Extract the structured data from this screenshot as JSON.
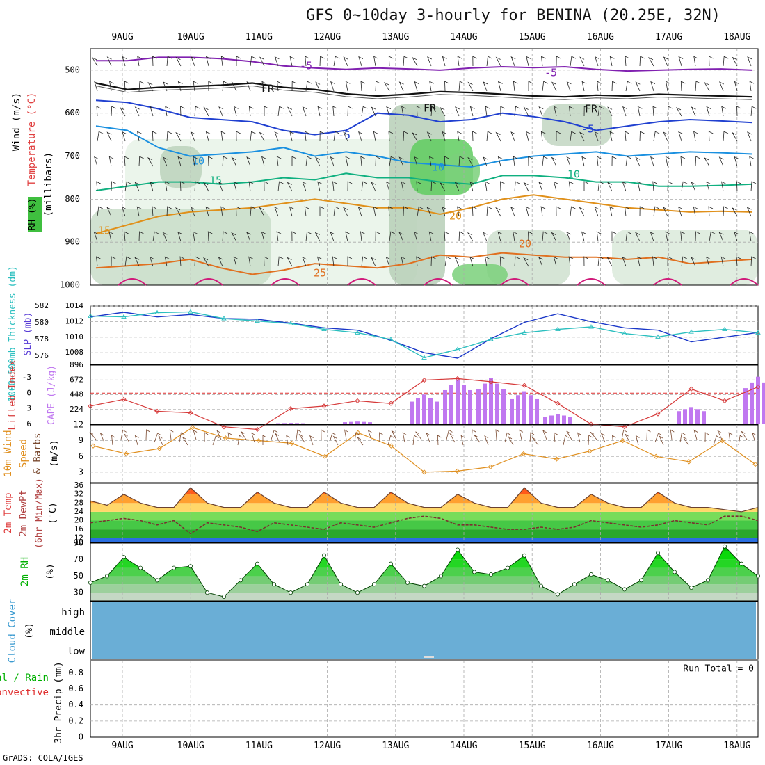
{
  "title": "GFS 0~10day 3-hourly for BENINA (20.25E, 32N)",
  "credit": "GrADS: COLA/IGES",
  "dates": [
    "9AUG",
    "10AUG",
    "11AUG",
    "12AUG",
    "13AUG",
    "14AUG",
    "15AUG",
    "16AUG",
    "17AUG",
    "18AUG"
  ],
  "colors": {
    "rh_fill": "#3fbf3f",
    "slp": "#1a37c8",
    "thickness": "#2bbfbf",
    "cape": "#c078f0",
    "lifted_index": "#d63a3a",
    "wind": "#e09020",
    "temp_hot": "#e04010",
    "rh2m": "#00d000",
    "cloud": "#6aaed6",
    "barb": "#7a4a30"
  },
  "chart_data": [
    {
      "type": "heatmap",
      "panel": "upper_air",
      "ylabels": [
        "Wind (m/s)",
        "Temperature (°C)",
        "RH (%)",
        "(millibars)"
      ],
      "yticks": [
        "500",
        "600",
        "700",
        "800",
        "900",
        "1000"
      ],
      "ylim": [
        1000,
        450
      ],
      "contour_labels": [
        "-5",
        "-5",
        "FR",
        "FR",
        "FR",
        "-5",
        "-5",
        "10",
        "10",
        "10",
        "15",
        "15",
        "20",
        "20",
        "25",
        "25"
      ],
      "isotherms": [
        {
          "name": "-5",
          "pressure": [
            478,
            478,
            470,
            470,
            473,
            480,
            490,
            495,
            498,
            495,
            497,
            500,
            495,
            492,
            494,
            492,
            498,
            502,
            500,
            498,
            497,
            500
          ]
        },
        {
          "name": "FR",
          "pressure": [
            530,
            545,
            540,
            538,
            535,
            530,
            540,
            545,
            555,
            560,
            556,
            550,
            552,
            556,
            560,
            562,
            558,
            560,
            556,
            558,
            560,
            562
          ]
        },
        {
          "name": "-5",
          "pressure": [
            570,
            575,
            590,
            610,
            615,
            620,
            640,
            650,
            640,
            600,
            605,
            620,
            615,
            600,
            608,
            620,
            640,
            630,
            620,
            615,
            618,
            622
          ]
        },
        {
          "name": "10",
          "pressure": [
            630,
            640,
            680,
            700,
            695,
            690,
            680,
            700,
            690,
            700,
            715,
            720,
            725,
            710,
            700,
            695,
            690,
            700,
            695,
            690,
            692,
            695
          ]
        },
        {
          "name": "15",
          "pressure": [
            780,
            770,
            760,
            760,
            765,
            760,
            750,
            755,
            740,
            750,
            750,
            760,
            765,
            745,
            745,
            750,
            760,
            760,
            770,
            770,
            768,
            765
          ]
        },
        {
          "name": "20",
          "pressure": [
            880,
            860,
            840,
            830,
            825,
            820,
            810,
            800,
            810,
            820,
            820,
            835,
            820,
            800,
            790,
            800,
            810,
            820,
            825,
            830,
            828,
            830
          ]
        },
        {
          "name": "25",
          "pressure": [
            960,
            955,
            950,
            940,
            960,
            975,
            965,
            950,
            955,
            960,
            950,
            930,
            935,
            925,
            930,
            935,
            935,
            940,
            935,
            950,
            945,
            940
          ]
        }
      ]
    },
    {
      "type": "line",
      "panel": "slp_thickness",
      "ylabels": [
        "1000~500mb Thickness (dm)",
        "SLP (mb)"
      ],
      "left_ticks": [
        "582",
        "580",
        "578",
        "576"
      ],
      "right_ticks": [
        "1014",
        "1012",
        "1010",
        "1008"
      ],
      "ylim_slp": [
        1006.5,
        1014
      ],
      "ylim_thickness": [
        575,
        582
      ],
      "x": [
        0,
        0.5,
        1,
        1.5,
        2,
        2.5,
        3,
        3.5,
        4,
        4.5,
        5,
        5.5,
        6,
        6.5,
        7,
        7.5,
        8,
        8.5,
        9,
        9.5,
        10
      ],
      "series": [
        {
          "name": "SLP (mb)",
          "axis": "right",
          "values": [
            1012.6,
            1013.2,
            1012.6,
            1012.9,
            1012.4,
            1012.3,
            1011.8,
            1011.2,
            1010.9,
            1009.6,
            1008.0,
            1007.3,
            1009.8,
            1011.9,
            1013.0,
            1012.0,
            1011.2,
            1010.9,
            1009.4,
            1010.0,
            1010.6
          ]
        },
        {
          "name": "1000~500mb Thickness (dm)",
          "axis": "left",
          "values": [
            580.8,
            580.7,
            581.2,
            581.3,
            580.5,
            580.2,
            579.9,
            579.2,
            578.8,
            578.0,
            575.8,
            576.8,
            578.0,
            578.8,
            579.2,
            579.5,
            578.7,
            578.3,
            578.9,
            579.2,
            578.8
          ]
        }
      ]
    },
    {
      "type": "bar",
      "panel": "cape_li",
      "ylabels": [
        "Lifted Index",
        "CAPE (J/kg)"
      ],
      "left_ticks": [
        "-3",
        "0",
        "3",
        "6"
      ],
      "right_ticks": [
        "896",
        "672",
        "448",
        "224"
      ],
      "ylim_li": [
        6,
        -5.4
      ],
      "ylim_cape": [
        0,
        896
      ],
      "x": [
        0,
        0.5,
        1,
        1.5,
        2,
        2.5,
        3,
        3.5,
        4,
        4.5,
        5,
        5.5,
        6,
        6.5,
        7,
        7.5,
        8,
        8.5,
        9,
        9.5,
        10
      ],
      "series": [
        {
          "name": "CAPE (J/kg)",
          "values": [
            0,
            0,
            0,
            0,
            0,
            0,
            20,
            10,
            40,
            10,
            450,
            680,
            700,
            500,
            150,
            0,
            0,
            0,
            260,
            0,
            720
          ]
        },
        {
          "name": "Lifted Index",
          "values": [
            2.5,
            1.2,
            3.5,
            3.8,
            6.5,
            7,
            3,
            2.5,
            1.5,
            2.0,
            -2.5,
            -2.8,
            -2.2,
            -1.5,
            2,
            6,
            6.5,
            4,
            -0.8,
            1.5,
            -1.2
          ]
        }
      ]
    },
    {
      "type": "line",
      "panel": "wind10m",
      "ylabels": [
        "10m Wind Speed & Barbs (m/s)"
      ],
      "yticks": [
        "12",
        "9",
        "6",
        "3"
      ],
      "ylim": [
        1,
        12
      ],
      "x": [
        0,
        0.5,
        1,
        1.5,
        2,
        2.5,
        3,
        3.5,
        4,
        4.5,
        5,
        5.5,
        6,
        6.5,
        7,
        7.5,
        8,
        8.5,
        9,
        9.5,
        10
      ],
      "series": [
        {
          "name": "10m Wind Speed",
          "values": [
            8.0,
            6.5,
            7.5,
            11.5,
            9.5,
            9.0,
            8.5,
            6.0,
            10.5,
            8.0,
            3.0,
            3.2,
            4.0,
            6.5,
            5.5,
            7.0,
            9.0,
            6.0,
            5.0,
            9.0,
            4.5
          ]
        }
      ]
    },
    {
      "type": "area",
      "panel": "temp2m",
      "ylabels": [
        "2m Temp",
        "2m DewPt",
        "(6hr Min/Max) (°C)"
      ],
      "yticks": [
        "36",
        "32",
        "28",
        "24",
        "20",
        "16",
        "12",
        "10"
      ],
      "ylim": [
        10,
        37
      ],
      "x": [
        0,
        0.25,
        0.5,
        0.75,
        1,
        1.25,
        1.5,
        1.75,
        2,
        2.25,
        2.5,
        2.75,
        3,
        3.25,
        3.5,
        3.75,
        4,
        4.25,
        4.5,
        4.75,
        5,
        5.25,
        5.5,
        5.75,
        6,
        6.25,
        6.5,
        6.75,
        7,
        7.25,
        7.5,
        7.75,
        8,
        8.25,
        8.5,
        8.75,
        9,
        9.25,
        9.5,
        9.75,
        10
      ],
      "series": [
        {
          "name": "2m Temp",
          "values": [
            29,
            27,
            32,
            28,
            26,
            26,
            35,
            28,
            26,
            26,
            33,
            28,
            26,
            26,
            33,
            28,
            26,
            26,
            33,
            28,
            26,
            26,
            32,
            28,
            26,
            26,
            35,
            28,
            26,
            26,
            32,
            28,
            26,
            26,
            33,
            28,
            26,
            26,
            25,
            24,
            26
          ]
        },
        {
          "name": "2m DewPt",
          "values": [
            19,
            20,
            21,
            20,
            18,
            20,
            14,
            19,
            18,
            17,
            15,
            19,
            18,
            17,
            16,
            19,
            18,
            17,
            19,
            21,
            22,
            21,
            18,
            18,
            17,
            16,
            16,
            17,
            16,
            17,
            20,
            19,
            18,
            17,
            18,
            20,
            19,
            18,
            22,
            22,
            20
          ]
        }
      ]
    },
    {
      "type": "area",
      "panel": "rh2m",
      "ylabels": [
        "2m RH",
        "(%)"
      ],
      "yticks": [
        "90",
        "70",
        "50",
        "30"
      ],
      "ylim": [
        20,
        90
      ],
      "x": [
        0,
        0.25,
        0.5,
        0.75,
        1,
        1.25,
        1.5,
        1.75,
        2,
        2.25,
        2.5,
        2.75,
        3,
        3.25,
        3.5,
        3.75,
        4,
        4.25,
        4.5,
        4.75,
        5,
        5.25,
        5.5,
        5.75,
        6,
        6.25,
        6.5,
        6.75,
        7,
        7.25,
        7.5,
        7.75,
        8,
        8.25,
        8.5,
        8.75,
        9,
        9.25,
        9.5,
        9.75,
        10
      ],
      "series": [
        {
          "name": "2m RH",
          "values": [
            42,
            50,
            73,
            60,
            45,
            60,
            62,
            30,
            25,
            45,
            65,
            40,
            30,
            40,
            75,
            40,
            30,
            40,
            65,
            42,
            38,
            50,
            82,
            55,
            52,
            60,
            75,
            38,
            28,
            40,
            52,
            45,
            34,
            45,
            78,
            55,
            36,
            45,
            86,
            65,
            50
          ]
        }
      ]
    },
    {
      "type": "bar",
      "panel": "cloud_cover",
      "ylabels": [
        "Cloud Cover",
        "(%)"
      ],
      "level_labels": [
        "high",
        "middle",
        "low"
      ]
    },
    {
      "type": "bar",
      "panel": "precip",
      "ylabels": [
        "Total / Rain",
        "Convective",
        "3hr Precip (mm)"
      ],
      "yticks": [
        "0.8",
        "0.6",
        "0.4",
        "0.2",
        "0"
      ],
      "ylim": [
        0,
        0.95
      ],
      "annotation": "Run Total = 0",
      "values": []
    }
  ]
}
